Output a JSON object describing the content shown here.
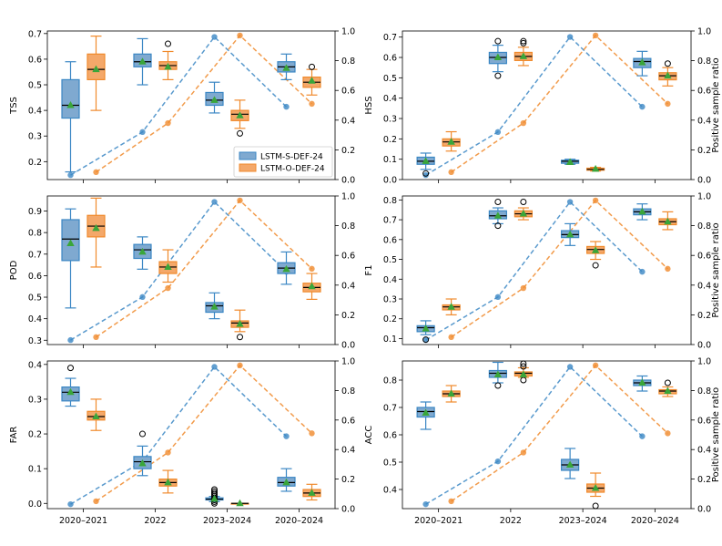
{
  "colors": {
    "s_box": "#7fa9d0",
    "s_line": "#3b87c4",
    "o_box": "#f4a86a",
    "o_line": "#f08a2c",
    "mean": "#3aa63a",
    "median": "#000000"
  },
  "legend": {
    "s": "LSTM-S-DEF-24",
    "o": "LSTM-O-DEF-24"
  },
  "right_label": "Positive sample ratio",
  "categories": [
    "2020–2021",
    "2022",
    "2023–2024",
    "2020–2024"
  ],
  "chart_data": [
    {
      "type": "box+line",
      "title": "TSS",
      "ylabel": "TSS",
      "ylim": [
        0.13,
        0.71
      ],
      "yticks": [
        0.2,
        0.3,
        0.4,
        0.5,
        0.6,
        0.7
      ],
      "y2lim": [
        0,
        1
      ],
      "y2ticks": [
        0.0,
        0.2,
        0.4,
        0.6,
        0.8,
        1.0
      ],
      "legend_position": "inside-right",
      "ratio": {
        "s": [
          0.03,
          0.32,
          0.96,
          0.49
        ],
        "o": [
          0.05,
          0.38,
          0.97,
          0.51
        ]
      },
      "boxes": {
        "s": [
          {
            "lo": 0.16,
            "q1": 0.37,
            "med": 0.42,
            "q3": 0.52,
            "hi": 0.59,
            "mean": 0.42,
            "out": []
          },
          {
            "lo": 0.5,
            "q1": 0.57,
            "med": 0.59,
            "q3": 0.62,
            "hi": 0.68,
            "mean": 0.59,
            "out": []
          },
          {
            "lo": 0.39,
            "q1": 0.42,
            "med": 0.44,
            "q3": 0.47,
            "hi": 0.51,
            "mean": 0.44,
            "out": []
          },
          {
            "lo": 0.52,
            "q1": 0.55,
            "med": 0.57,
            "q3": 0.59,
            "hi": 0.62,
            "mean": 0.565,
            "out": []
          }
        ],
        "o": [
          {
            "lo": 0.4,
            "q1": 0.52,
            "med": 0.56,
            "q3": 0.62,
            "hi": 0.69,
            "mean": 0.56,
            "out": []
          },
          {
            "lo": 0.52,
            "q1": 0.56,
            "med": 0.575,
            "q3": 0.59,
            "hi": 0.63,
            "mean": 0.57,
            "out": [
              0.66
            ]
          },
          {
            "lo": 0.33,
            "q1": 0.36,
            "med": 0.385,
            "q3": 0.4,
            "hi": 0.44,
            "mean": 0.38,
            "out": [
              0.31
            ]
          },
          {
            "lo": 0.46,
            "q1": 0.49,
            "med": 0.51,
            "q3": 0.53,
            "hi": 0.56,
            "mean": 0.515,
            "out": [
              0.57
            ]
          }
        ]
      }
    },
    {
      "type": "box+line",
      "title": "HSS",
      "ylabel": "HSS",
      "ylim": [
        0.0,
        0.73
      ],
      "yticks": [
        0.0,
        0.1,
        0.2,
        0.3,
        0.4,
        0.5,
        0.6,
        0.7
      ],
      "y2lim": [
        0,
        1
      ],
      "y2ticks": [
        0.0,
        0.2,
        0.4,
        0.6,
        0.8,
        1.0
      ],
      "ratio": {
        "s": [
          0.03,
          0.32,
          0.96,
          0.49
        ],
        "o": [
          0.05,
          0.38,
          0.97,
          0.51
        ]
      },
      "boxes": {
        "s": [
          {
            "lo": 0.05,
            "q1": 0.075,
            "med": 0.09,
            "q3": 0.11,
            "hi": 0.13,
            "mean": 0.09,
            "out": [
              0.03
            ]
          },
          {
            "lo": 0.53,
            "q1": 0.57,
            "med": 0.6,
            "q3": 0.625,
            "hi": 0.66,
            "mean": 0.6,
            "out": [
              0.51,
              0.68
            ]
          },
          {
            "lo": 0.075,
            "q1": 0.08,
            "med": 0.09,
            "q3": 0.095,
            "hi": 0.1,
            "mean": 0.085,
            "out": []
          },
          {
            "lo": 0.51,
            "q1": 0.55,
            "med": 0.58,
            "q3": 0.595,
            "hi": 0.63,
            "mean": 0.575,
            "out": []
          }
        ],
        "o": [
          {
            "lo": 0.14,
            "q1": 0.165,
            "med": 0.185,
            "q3": 0.2,
            "hi": 0.235,
            "mean": 0.185,
            "out": []
          },
          {
            "lo": 0.56,
            "q1": 0.585,
            "med": 0.605,
            "q3": 0.625,
            "hi": 0.65,
            "mean": 0.605,
            "out": [
              0.67,
              0.68
            ]
          },
          {
            "lo": 0.042,
            "q1": 0.046,
            "med": 0.05,
            "q3": 0.056,
            "hi": 0.06,
            "mean": 0.052,
            "out": []
          },
          {
            "lo": 0.46,
            "q1": 0.49,
            "med": 0.51,
            "q3": 0.525,
            "hi": 0.55,
            "mean": 0.51,
            "out": [
              0.57
            ]
          }
        ]
      }
    },
    {
      "type": "box+line",
      "title": "POD",
      "ylabel": "POD",
      "ylim": [
        0.28,
        0.97
      ],
      "yticks": [
        0.3,
        0.4,
        0.5,
        0.6,
        0.7,
        0.8,
        0.9
      ],
      "y2lim": [
        0,
        1
      ],
      "y2ticks": [
        0.0,
        0.2,
        0.4,
        0.6,
        0.8,
        1.0
      ],
      "ratio": {
        "s": [
          0.03,
          0.32,
          0.96,
          0.49
        ],
        "o": [
          0.05,
          0.38,
          0.97,
          0.51
        ]
      },
      "boxes": {
        "s": [
          {
            "lo": 0.45,
            "q1": 0.67,
            "med": 0.77,
            "q3": 0.86,
            "hi": 0.91,
            "mean": 0.75,
            "out": []
          },
          {
            "lo": 0.63,
            "q1": 0.68,
            "med": 0.72,
            "q3": 0.745,
            "hi": 0.78,
            "mean": 0.71,
            "out": []
          },
          {
            "lo": 0.4,
            "q1": 0.43,
            "med": 0.46,
            "q3": 0.475,
            "hi": 0.52,
            "mean": 0.455,
            "out": []
          },
          {
            "lo": 0.56,
            "q1": 0.61,
            "med": 0.635,
            "q3": 0.66,
            "hi": 0.71,
            "mean": 0.63,
            "out": []
          }
        ],
        "o": [
          {
            "lo": 0.64,
            "q1": 0.78,
            "med": 0.83,
            "q3": 0.88,
            "hi": 0.96,
            "mean": 0.82,
            "out": []
          },
          {
            "lo": 0.57,
            "q1": 0.61,
            "med": 0.64,
            "q3": 0.665,
            "hi": 0.72,
            "mean": 0.64,
            "out": []
          },
          {
            "lo": 0.34,
            "q1": 0.36,
            "med": 0.38,
            "q3": 0.39,
            "hi": 0.44,
            "mean": 0.375,
            "out": [
              0.315
            ]
          },
          {
            "lo": 0.49,
            "q1": 0.525,
            "med": 0.545,
            "q3": 0.565,
            "hi": 0.61,
            "mean": 0.55,
            "out": []
          }
        ]
      }
    },
    {
      "type": "box+line",
      "title": "F1",
      "ylabel": "F1",
      "ylim": [
        0.07,
        0.82
      ],
      "yticks": [
        0.1,
        0.2,
        0.3,
        0.4,
        0.5,
        0.6,
        0.7,
        0.8
      ],
      "y2lim": [
        0,
        1
      ],
      "y2ticks": [
        0.0,
        0.2,
        0.4,
        0.6,
        0.8,
        1.0
      ],
      "ratio": {
        "s": [
          0.03,
          0.32,
          0.96,
          0.49
        ],
        "o": [
          0.05,
          0.38,
          0.97,
          0.51
        ]
      },
      "boxes": {
        "s": [
          {
            "lo": 0.12,
            "q1": 0.135,
            "med": 0.155,
            "q3": 0.165,
            "hi": 0.19,
            "mean": 0.15,
            "out": [
              0.095
            ]
          },
          {
            "lo": 0.68,
            "q1": 0.705,
            "med": 0.72,
            "q3": 0.745,
            "hi": 0.76,
            "mean": 0.72,
            "out": [
              0.67,
              0.79
            ]
          },
          {
            "lo": 0.57,
            "q1": 0.61,
            "med": 0.625,
            "q3": 0.645,
            "hi": 0.68,
            "mean": 0.625,
            "out": []
          },
          {
            "lo": 0.7,
            "q1": 0.725,
            "med": 0.74,
            "q3": 0.755,
            "hi": 0.78,
            "mean": 0.74,
            "out": []
          }
        ],
        "o": [
          {
            "lo": 0.22,
            "q1": 0.245,
            "med": 0.26,
            "q3": 0.27,
            "hi": 0.3,
            "mean": 0.26,
            "out": []
          },
          {
            "lo": 0.7,
            "q1": 0.715,
            "med": 0.73,
            "q3": 0.745,
            "hi": 0.76,
            "mean": 0.73,
            "out": [
              0.79
            ]
          },
          {
            "lo": 0.5,
            "q1": 0.53,
            "med": 0.55,
            "q3": 0.565,
            "hi": 0.59,
            "mean": 0.545,
            "out": [
              0.47
            ]
          },
          {
            "lo": 0.65,
            "q1": 0.675,
            "med": 0.69,
            "q3": 0.705,
            "hi": 0.74,
            "mean": 0.69,
            "out": []
          }
        ]
      }
    },
    {
      "type": "box+line",
      "title": "FAR",
      "ylabel": "FAR",
      "ylim": [
        -0.015,
        0.41
      ],
      "yticks": [
        0.0,
        0.1,
        0.2,
        0.3,
        0.4
      ],
      "y2lim": [
        0,
        1
      ],
      "y2ticks": [
        0.0,
        0.2,
        0.4,
        0.6,
        0.8,
        1.0
      ],
      "ratio": {
        "s": [
          0.03,
          0.32,
          0.96,
          0.49
        ],
        "o": [
          0.05,
          0.38,
          0.97,
          0.51
        ]
      },
      "boxes": {
        "s": [
          {
            "lo": 0.28,
            "q1": 0.295,
            "med": 0.32,
            "q3": 0.335,
            "hi": 0.36,
            "mean": 0.32,
            "out": [
              0.39
            ]
          },
          {
            "lo": 0.08,
            "q1": 0.1,
            "med": 0.12,
            "q3": 0.135,
            "hi": 0.165,
            "mean": 0.115,
            "out": [
              0.2
            ]
          },
          {
            "lo": 0.005,
            "q1": 0.01,
            "med": 0.012,
            "q3": 0.016,
            "hi": 0.02,
            "mean": 0.013,
            "out": [
              0.0,
              0.005,
              0.01,
              0.015,
              0.02,
              0.025,
              0.03,
              0.035,
              0.04
            ]
          },
          {
            "lo": 0.035,
            "q1": 0.05,
            "med": 0.06,
            "q3": 0.075,
            "hi": 0.1,
            "mean": 0.06,
            "out": []
          }
        ],
        "o": [
          {
            "lo": 0.21,
            "q1": 0.24,
            "med": 0.25,
            "q3": 0.265,
            "hi": 0.3,
            "mean": 0.25,
            "out": []
          },
          {
            "lo": 0.03,
            "q1": 0.05,
            "med": 0.06,
            "q3": 0.07,
            "hi": 0.095,
            "mean": 0.06,
            "out": []
          },
          {
            "lo": 0.0,
            "q1": 0.0,
            "med": 0.0,
            "q3": 0.0,
            "hi": 0.0,
            "mean": 0.0,
            "out": []
          },
          {
            "lo": 0.01,
            "q1": 0.02,
            "med": 0.03,
            "q3": 0.04,
            "hi": 0.055,
            "mean": 0.03,
            "out": []
          }
        ]
      }
    },
    {
      "type": "box+line",
      "title": "ACC",
      "ylabel": "ACC",
      "ylim": [
        0.33,
        0.87
      ],
      "yticks": [
        0.4,
        0.5,
        0.6,
        0.7,
        0.8
      ],
      "y2lim": [
        0,
        1
      ],
      "y2ticks": [
        0.0,
        0.2,
        0.4,
        0.6,
        0.8,
        1.0
      ],
      "ratio": {
        "s": [
          0.03,
          0.32,
          0.96,
          0.49
        ],
        "o": [
          0.05,
          0.38,
          0.97,
          0.51
        ]
      },
      "boxes": {
        "s": [
          {
            "lo": 0.62,
            "q1": 0.665,
            "med": 0.685,
            "q3": 0.7,
            "hi": 0.72,
            "mean": 0.68,
            "out": []
          },
          {
            "lo": 0.79,
            "q1": 0.81,
            "med": 0.825,
            "q3": 0.835,
            "hi": 0.865,
            "mean": 0.82,
            "out": [
              0.78
            ]
          },
          {
            "lo": 0.44,
            "q1": 0.47,
            "med": 0.49,
            "q3": 0.51,
            "hi": 0.55,
            "mean": 0.49,
            "out": []
          },
          {
            "lo": 0.76,
            "q1": 0.78,
            "med": 0.79,
            "q3": 0.8,
            "hi": 0.815,
            "mean": 0.79,
            "out": []
          }
        ],
        "o": [
          {
            "lo": 0.72,
            "q1": 0.74,
            "med": 0.75,
            "q3": 0.76,
            "hi": 0.78,
            "mean": 0.75,
            "out": []
          },
          {
            "lo": 0.81,
            "q1": 0.815,
            "med": 0.825,
            "q3": 0.83,
            "hi": 0.845,
            "mean": 0.82,
            "out": [
              0.8,
              0.85,
              0.86
            ]
          },
          {
            "lo": 0.375,
            "q1": 0.39,
            "med": 0.405,
            "q3": 0.42,
            "hi": 0.46,
            "mean": 0.405,
            "out": [
              0.34
            ]
          },
          {
            "lo": 0.74,
            "q1": 0.75,
            "med": 0.76,
            "q3": 0.765,
            "hi": 0.775,
            "mean": 0.76,
            "out": [
              0.79
            ]
          }
        ]
      }
    }
  ]
}
